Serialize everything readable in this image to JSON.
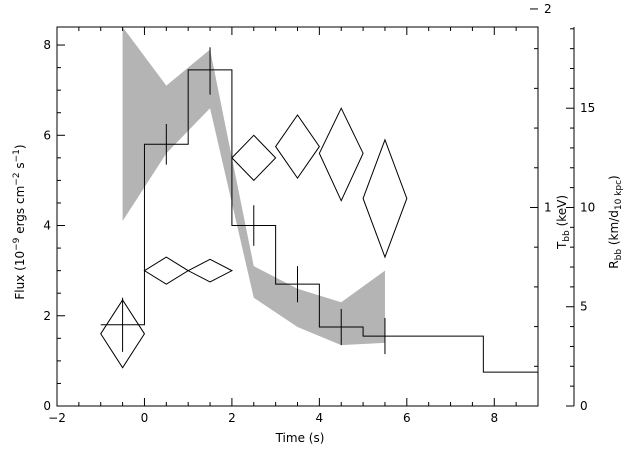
{
  "chart_data": {
    "type": "line",
    "xlabel": "Time (s)",
    "ylabel_left": {
      "text": "Flux (10",
      "sup1": "−9",
      "mid": " ergs cm",
      "sup2": "−2",
      "mid2": " s",
      "sup3": "−1",
      "end": ")"
    },
    "ylabel_right_T": {
      "text": "T",
      "sub": "bb",
      "end": " (keV)"
    },
    "ylabel_right_R": {
      "text": "R",
      "sub": "bb",
      "mid": " (km/d",
      "sub2": "10 kpc",
      "end": ")"
    },
    "xlim": [
      -2,
      9
    ],
    "ylim_flux": [
      0,
      8.4
    ],
    "x_ticks": [
      -2,
      0,
      2,
      4,
      6,
      8
    ],
    "y_ticks_flux": [
      0,
      2,
      4,
      6,
      8
    ],
    "T_axis": {
      "ticks": [
        1,
        2
      ],
      "flux_at_zero": 0,
      "flux_per_keV": 4.4
    },
    "R_axis": {
      "ticks": [
        0,
        5,
        10,
        15
      ],
      "flux_per_unit": 0.44
    },
    "series": [
      {
        "kind": "step",
        "edges": [
          -1,
          0,
          1,
          2,
          3,
          4,
          5,
          6,
          7.75,
          9
        ],
        "values": [
          1.8,
          5.8,
          7.45,
          4.0,
          2.7,
          1.75,
          1.55,
          1.55,
          0.75
        ]
      },
      {
        "kind": "errorbars",
        "points": [
          {
            "x": -0.5,
            "y": 1.8,
            "ylo": 1.2,
            "yhi": 2.4,
            "xlo": -1.0,
            "xhi": 0.0
          },
          {
            "x": 0.5,
            "y": 5.8,
            "ylo": 5.35,
            "yhi": 6.25,
            "xlo": 0.0,
            "xhi": 1.0
          },
          {
            "x": 1.5,
            "y": 7.45,
            "ylo": 6.9,
            "yhi": 7.95,
            "xlo": 1.0,
            "xhi": 2.0
          },
          {
            "x": 2.5,
            "y": 4.0,
            "ylo": 3.55,
            "yhi": 4.45,
            "xlo": 2.0,
            "xhi": 3.0
          },
          {
            "x": 3.5,
            "y": 2.7,
            "ylo": 2.3,
            "yhi": 3.1,
            "xlo": 3.0,
            "xhi": 4.0
          },
          {
            "x": 4.5,
            "y": 1.75,
            "ylo": 1.35,
            "yhi": 2.15,
            "xlo": 4.0,
            "xhi": 5.0
          },
          {
            "x": 5.5,
            "y": 1.55,
            "ylo": 1.15,
            "yhi": 1.95,
            "xlo": 5.0,
            "xhi": 6.0
          }
        ]
      },
      {
        "kind": "band",
        "x": [
          -0.5,
          0.5,
          1.5,
          2.5,
          3.5,
          4.5,
          5.5
        ],
        "upper": [
          8.4,
          7.1,
          7.9,
          3.1,
          2.6,
          2.3,
          3.0
        ],
        "lower": [
          4.1,
          5.6,
          6.6,
          2.4,
          1.75,
          1.35,
          1.4
        ],
        "color": "#b4b4b4"
      },
      {
        "kind": "diamonds",
        "points": [
          {
            "x": -0.5,
            "y": 1.6,
            "xlo": -1.0,
            "xhi": 0.0,
            "ylo": 0.85,
            "yhi": 2.35
          },
          {
            "x": 0.5,
            "y": 3.0,
            "xlo": 0.0,
            "xhi": 1.0,
            "ylo": 2.7,
            "yhi": 3.3
          },
          {
            "x": 1.5,
            "y": 3.0,
            "xlo": 1.0,
            "xhi": 2.0,
            "ylo": 2.75,
            "yhi": 3.25
          },
          {
            "x": 2.5,
            "y": 5.5,
            "xlo": 2.0,
            "xhi": 3.0,
            "ylo": 5.0,
            "yhi": 6.0
          },
          {
            "x": 3.5,
            "y": 5.75,
            "xlo": 3.0,
            "xhi": 4.0,
            "ylo": 5.05,
            "yhi": 6.45
          },
          {
            "x": 4.5,
            "y": 5.6,
            "xlo": 4.0,
            "xhi": 5.0,
            "ylo": 4.55,
            "yhi": 6.6
          },
          {
            "x": 5.5,
            "y": 4.6,
            "xlo": 5.0,
            "xhi": 6.0,
            "ylo": 3.3,
            "yhi": 5.9
          }
        ]
      }
    ]
  }
}
